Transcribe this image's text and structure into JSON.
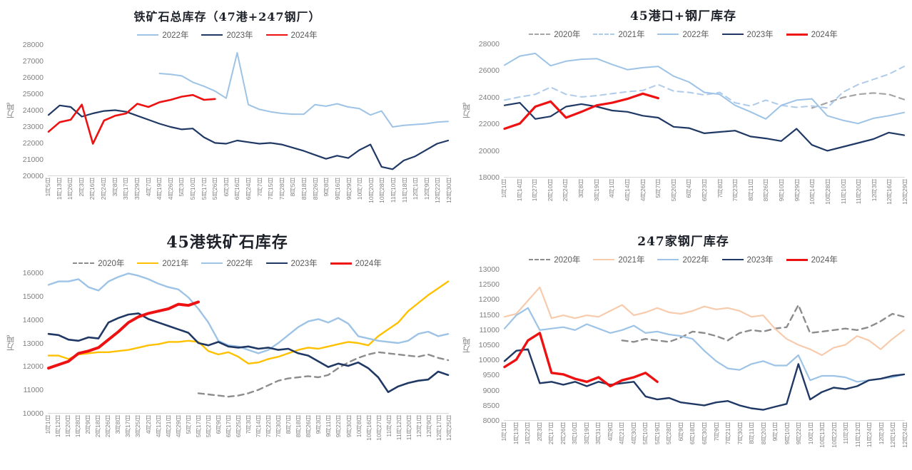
{
  "page": {
    "background": "#ffffff"
  },
  "chart_data": [
    {
      "type": "line",
      "title": "铁矿石总库存（47港+247钢厂）",
      "ylabel": "万吨",
      "ylim": [
        20000,
        28000
      ],
      "ystep": 1000,
      "grid": false,
      "legend_position": "top",
      "categories": [
        "1月5日",
        "1月13日",
        "1月26日",
        "2月3日",
        "2月16日",
        "2月24日",
        "3月8日",
        "3月17日",
        "3月29日",
        "4月7日",
        "4月19日",
        "4月26日",
        "5月3日",
        "5月10日",
        "5月17日",
        "5月26日",
        "6月3日",
        "6月16日",
        "6月24日",
        "7月7日",
        "7月15日",
        "7月28日",
        "8月5日",
        "8月18日",
        "8月26日",
        "9月8日",
        "9月16日",
        "9月29日",
        "10月7日",
        "10月20日",
        "10月28日",
        "11月10日",
        "11月18日",
        "12月1日",
        "12月9日",
        "12月22日",
        "12月30日"
      ],
      "series": [
        {
          "name": "2022年",
          "color": "#9dc3e6",
          "style": "solid",
          "width": 2,
          "values": [
            null,
            null,
            null,
            null,
            null,
            null,
            null,
            null,
            null,
            null,
            26300,
            26250,
            26150,
            25750,
            25500,
            25200,
            24750,
            27600,
            24350,
            24050,
            23900,
            23800,
            23750,
            23750,
            24350,
            24250,
            24400,
            24200,
            24100,
            23700,
            23950,
            22950,
            23050,
            23100,
            23150,
            23250,
            23300
          ]
        },
        {
          "name": "2023年",
          "color": "#1f3864",
          "style": "solid",
          "width": 2.2,
          "values": [
            23700,
            24300,
            24200,
            23600,
            23800,
            23950,
            24000,
            23900,
            23650,
            23400,
            23150,
            22950,
            22800,
            22850,
            22300,
            21950,
            21900,
            22100,
            22000,
            21900,
            21950,
            21850,
            21650,
            21450,
            21200,
            20950,
            21150,
            21000,
            21500,
            21850,
            20450,
            20300,
            20850,
            21100,
            21500,
            21900,
            22100
          ]
        },
        {
          "name": "2024年",
          "color": "#ee1111",
          "style": "solid",
          "width": 2.6,
          "values": [
            22650,
            23250,
            23400,
            24350,
            21900,
            23350,
            23650,
            23800,
            24400,
            24200,
            24500,
            24650,
            24850,
            24950,
            24650,
            24700,
            null,
            null,
            null,
            null,
            null,
            null,
            null,
            null,
            null,
            null,
            null,
            null,
            null,
            null,
            null,
            null,
            null,
            null,
            null,
            null,
            null
          ]
        }
      ]
    },
    {
      "type": "line",
      "title": "45港口+钢厂库存",
      "ylabel": "万吨",
      "ylim": [
        18000,
        28000
      ],
      "ystep": 2000,
      "grid": false,
      "legend_position": "top",
      "categories": [
        "1月1日",
        "1月14日",
        "1月27日",
        "2月10日",
        "2月24日",
        "3月8日",
        "3月19日",
        "4月1日",
        "4月14日",
        "4月26日",
        "5月7日",
        "5月20日",
        "6月4日",
        "6月23日",
        "7月8日",
        "7月23日",
        "8月11日",
        "8月26日",
        "9月10日",
        "9月29日",
        "10月14日",
        "10月28日",
        "11月10日",
        "11月20日",
        "12月3日",
        "12月16日",
        "12月29日"
      ],
      "series": [
        {
          "name": "2020年",
          "color": "#a6a6a6",
          "style": "dashed",
          "width": 2.2,
          "values": [
            null,
            null,
            null,
            null,
            null,
            null,
            null,
            null,
            null,
            null,
            null,
            null,
            null,
            null,
            null,
            null,
            null,
            null,
            null,
            null,
            23200,
            23600,
            24000,
            24250,
            24350,
            24250,
            23850
          ]
        },
        {
          "name": "2021年",
          "color": "#aecbeb",
          "style": "dashed",
          "width": 2,
          "values": [
            23800,
            24050,
            24250,
            24800,
            24250,
            24050,
            24150,
            24300,
            24450,
            24550,
            25000,
            24500,
            24400,
            24200,
            24400,
            23600,
            23350,
            23800,
            23400,
            23250,
            23350,
            23200,
            24400,
            25000,
            25400,
            25800,
            26400
          ]
        },
        {
          "name": "2022年",
          "color": "#9dc3e6",
          "style": "solid",
          "width": 2,
          "values": [
            26500,
            27200,
            27400,
            26450,
            26800,
            26950,
            27000,
            26550,
            26150,
            26300,
            26400,
            25650,
            25200,
            24400,
            24250,
            23400,
            22900,
            22350,
            23400,
            23800,
            23900,
            22600,
            22250,
            22000,
            22400,
            22600,
            22850
          ]
        },
        {
          "name": "2023年",
          "color": "#1f3864",
          "style": "solid",
          "width": 2.2,
          "values": [
            23400,
            23600,
            22350,
            22550,
            23300,
            23500,
            23300,
            23000,
            22900,
            22600,
            22450,
            21750,
            21650,
            21250,
            21350,
            21450,
            21000,
            20850,
            20650,
            21600,
            20350,
            19900,
            20200,
            20500,
            20800,
            21300,
            21100
          ]
        },
        {
          "name": "2024年",
          "color": "#ee1111",
          "style": "solid",
          "width": 3.2,
          "values": [
            21600,
            22000,
            23300,
            23700,
            22450,
            22900,
            23400,
            23600,
            23900,
            24300,
            23950,
            null,
            null,
            null,
            null,
            null,
            null,
            null,
            null,
            null,
            null,
            null,
            null,
            null,
            null,
            null,
            null
          ]
        }
      ]
    },
    {
      "type": "line",
      "title": "45港铁矿石库存",
      "ylabel": "万吨",
      "ylim": [
        10000,
        16000
      ],
      "ystep": 1000,
      "grid": false,
      "legend_position": "top",
      "categories": [
        "1月1日",
        "1月12日",
        "1月20日",
        "1月28日",
        "2月9日",
        "2月18日",
        "2月26日",
        "3月8日",
        "3月17日",
        "3月25日",
        "4月2日",
        "4月12日",
        "4月21日",
        "4月29日",
        "5月7日",
        "5月17日",
        "5月27日",
        "6月9日",
        "6月17日",
        "6月25日",
        "7月3日",
        "7月14日",
        "7月22日",
        "7月30日",
        "8月7日",
        "8月18日",
        "8月26日",
        "9月3日",
        "9月11日",
        "9月22日",
        "9月30日",
        "10月8日",
        "10月16日",
        "10月27日",
        "11月4日",
        "11月12日",
        "11月20日",
        "12月1日",
        "12月9日",
        "12月17日",
        "12月25日"
      ],
      "series": [
        {
          "name": "2020年",
          "color": "#8c8c8c",
          "style": "dashed",
          "width": 2.4,
          "values": [
            null,
            null,
            null,
            null,
            null,
            null,
            null,
            null,
            null,
            null,
            null,
            null,
            null,
            null,
            null,
            10800,
            10750,
            10700,
            10650,
            10700,
            10800,
            10950,
            11150,
            11350,
            11450,
            11500,
            11550,
            11500,
            11600,
            11900,
            12150,
            12350,
            12500,
            12600,
            12550,
            12500,
            12450,
            12400,
            12500,
            12350,
            12250
          ]
        },
        {
          "name": "2021年",
          "color": "#ffc000",
          "style": "solid",
          "width": 2.4,
          "values": [
            12450,
            12450,
            12300,
            12500,
            12550,
            12600,
            12600,
            12650,
            12700,
            12800,
            12900,
            12950,
            13050,
            13050,
            13100,
            13050,
            12650,
            12500,
            12600,
            12400,
            12100,
            12150,
            12300,
            12400,
            12550,
            12700,
            12800,
            12750,
            12850,
            12950,
            13050,
            13000,
            12900,
            13300,
            13600,
            13900,
            14400,
            14750,
            15100,
            15400,
            15700
          ]
        },
        {
          "name": "2022年",
          "color": "#9dc3e6",
          "style": "solid",
          "width": 2.4,
          "values": [
            15550,
            15700,
            15700,
            15800,
            15450,
            15300,
            15700,
            15900,
            16050,
            15950,
            15800,
            15600,
            15450,
            15350,
            15000,
            14500,
            13900,
            13100,
            12900,
            12850,
            12700,
            12550,
            12700,
            13000,
            13350,
            13700,
            13950,
            14050,
            13900,
            14100,
            13850,
            13300,
            13200,
            13100,
            13050,
            13000,
            13100,
            13400,
            13500,
            13300,
            13400
          ]
        },
        {
          "name": "2023年",
          "color": "#1f3864",
          "style": "solid",
          "width": 2.6,
          "values": [
            13400,
            13350,
            13150,
            13100,
            13250,
            13200,
            13900,
            14100,
            14250,
            14300,
            14050,
            13900,
            13750,
            13600,
            13450,
            13000,
            12900,
            13050,
            12850,
            12800,
            12850,
            12750,
            12800,
            12700,
            12750,
            12550,
            12450,
            12200,
            11950,
            12100,
            12000,
            12150,
            11900,
            11500,
            10850,
            11100,
            11250,
            11350,
            11400,
            11750,
            11600
          ]
        },
        {
          "name": "2024年",
          "color": "#ee1111",
          "style": "solid",
          "width": 4,
          "values": [
            11900,
            12050,
            12200,
            12550,
            12650,
            12800,
            13150,
            13500,
            13900,
            14150,
            14300,
            14400,
            14500,
            14700,
            14650,
            14800,
            null,
            null,
            null,
            null,
            null,
            null,
            null,
            null,
            null,
            null,
            null,
            null,
            null,
            null,
            null,
            null,
            null,
            null,
            null,
            null,
            null,
            null,
            null,
            null,
            null
          ]
        }
      ]
    },
    {
      "type": "line",
      "title": "247家钢厂库存",
      "ylabel": "万吨",
      "ylim": [
        8000,
        13000
      ],
      "ystep": 500,
      "grid": false,
      "legend_position": "top",
      "categories": [
        "1月1日",
        "1月13日",
        "1月22日",
        "2月3日",
        "2月17日",
        "2月26日",
        "3月10日",
        "3月19日",
        "3月31日",
        "4月9日",
        "4月21日",
        "4月30日",
        "5月10日",
        "5月19日",
        "5月28日",
        "6月9日",
        "6月18日",
        "6月30日",
        "7月9日",
        "7月21日",
        "7月30日",
        "8月11日",
        "8月20日",
        "9月1日",
        "9月10日",
        "9月22日",
        "10月1日",
        "10月13日",
        "10月22日",
        "11月3日",
        "11月12日",
        "11月24日",
        "12月3日",
        "12月15日",
        "12月24日"
      ],
      "series": [
        {
          "name": "2020年",
          "color": "#8c8c8c",
          "style": "dashed",
          "width": 2.4,
          "values": [
            null,
            null,
            null,
            null,
            null,
            null,
            null,
            null,
            null,
            null,
            10650,
            10600,
            10700,
            10650,
            10600,
            10750,
            10950,
            10900,
            10800,
            10650,
            10900,
            11000,
            10950,
            11050,
            11100,
            11850,
            10900,
            10950,
            11000,
            11050,
            11000,
            11100,
            11300,
            11550,
            11450
          ]
        },
        {
          "name": "2021年",
          "color": "#f8cbad",
          "style": "solid",
          "width": 2.2,
          "values": [
            11450,
            11550,
            12000,
            12450,
            11400,
            11500,
            11400,
            11500,
            11450,
            11650,
            11850,
            11500,
            11600,
            11750,
            11600,
            11550,
            11650,
            11800,
            11700,
            11750,
            11650,
            11450,
            11500,
            11050,
            10700,
            10500,
            10350,
            10150,
            10400,
            10500,
            10800,
            10650,
            10350,
            10700,
            11000
          ]
        },
        {
          "name": "2022年",
          "color": "#9dc3e6",
          "style": "solid",
          "width": 2.2,
          "values": [
            11050,
            11500,
            11750,
            11000,
            11050,
            11100,
            11000,
            11200,
            11050,
            10900,
            11000,
            11150,
            10900,
            10950,
            10850,
            10800,
            10700,
            10300,
            9950,
            9700,
            9650,
            9850,
            9950,
            9800,
            9800,
            10150,
            9300,
            9450,
            9450,
            9400,
            9250,
            9300,
            9350,
            9400,
            9500
          ]
        },
        {
          "name": "2023年",
          "color": "#1f3864",
          "style": "solid",
          "width": 2.4,
          "values": [
            9950,
            10300,
            10350,
            9200,
            9250,
            9150,
            9250,
            9100,
            9250,
            9150,
            9200,
            9250,
            8750,
            8650,
            8700,
            8550,
            8500,
            8450,
            8550,
            8600,
            8450,
            8350,
            8300,
            8400,
            8500,
            9850,
            8650,
            8900,
            9050,
            9000,
            9100,
            9300,
            9350,
            9450,
            9500
          ]
        },
        {
          "name": "2024年",
          "color": "#ee1111",
          "style": "solid",
          "width": 3.4,
          "values": [
            9750,
            10000,
            10650,
            10900,
            9550,
            9500,
            9350,
            9250,
            9400,
            9100,
            9300,
            9400,
            9550,
            9250,
            null,
            null,
            null,
            null,
            null,
            null,
            null,
            null,
            null,
            null,
            null,
            null,
            null,
            null,
            null,
            null,
            null,
            null,
            null,
            null,
            null
          ]
        }
      ]
    }
  ]
}
